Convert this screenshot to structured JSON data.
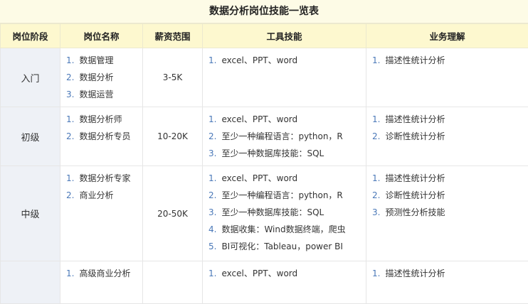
{
  "title": "数据分析岗位技能一览表",
  "headers": [
    "岗位阶段",
    "岗位名称",
    "薪资范围",
    "工具技能",
    "业务理解"
  ],
  "rows": [
    {
      "stage": "入门",
      "positions": [
        "数据管理",
        "数据分析",
        "数据运营"
      ],
      "salary": "3-5K",
      "tools": [
        "excel、PPT、word"
      ],
      "business": [
        "描述性统计分析"
      ]
    },
    {
      "stage": "初级",
      "positions": [
        "数据分析师",
        "数据分析专员"
      ],
      "salary": "10-20K",
      "tools": [
        "excel、PPT、word",
        "至少一种编程语言：python，R",
        "至少一种数据库技能：SQL"
      ],
      "business": [
        "描述性统计分析",
        "诊断性统计分析"
      ]
    },
    {
      "stage": "中级",
      "positions": [
        "数据分析专家",
        "商业分析"
      ],
      "salary": "20-50K",
      "tools": [
        "excel、PPT、word",
        "至少一种编程语言：python，R",
        "至少一种数据库技能：SQL",
        "数据收集：Wind数据终端，爬虫",
        "BI可视化：Tableau，power BI"
      ],
      "business": [
        "描述性统计分析",
        "诊断性统计分析",
        "预测性分析技能"
      ]
    },
    {
      "stage": "",
      "positions": [
        "高级商业分析"
      ],
      "salary": "",
      "tools": [
        "excel、PPT、word"
      ],
      "business": [
        "描述性统计分析"
      ]
    }
  ]
}
